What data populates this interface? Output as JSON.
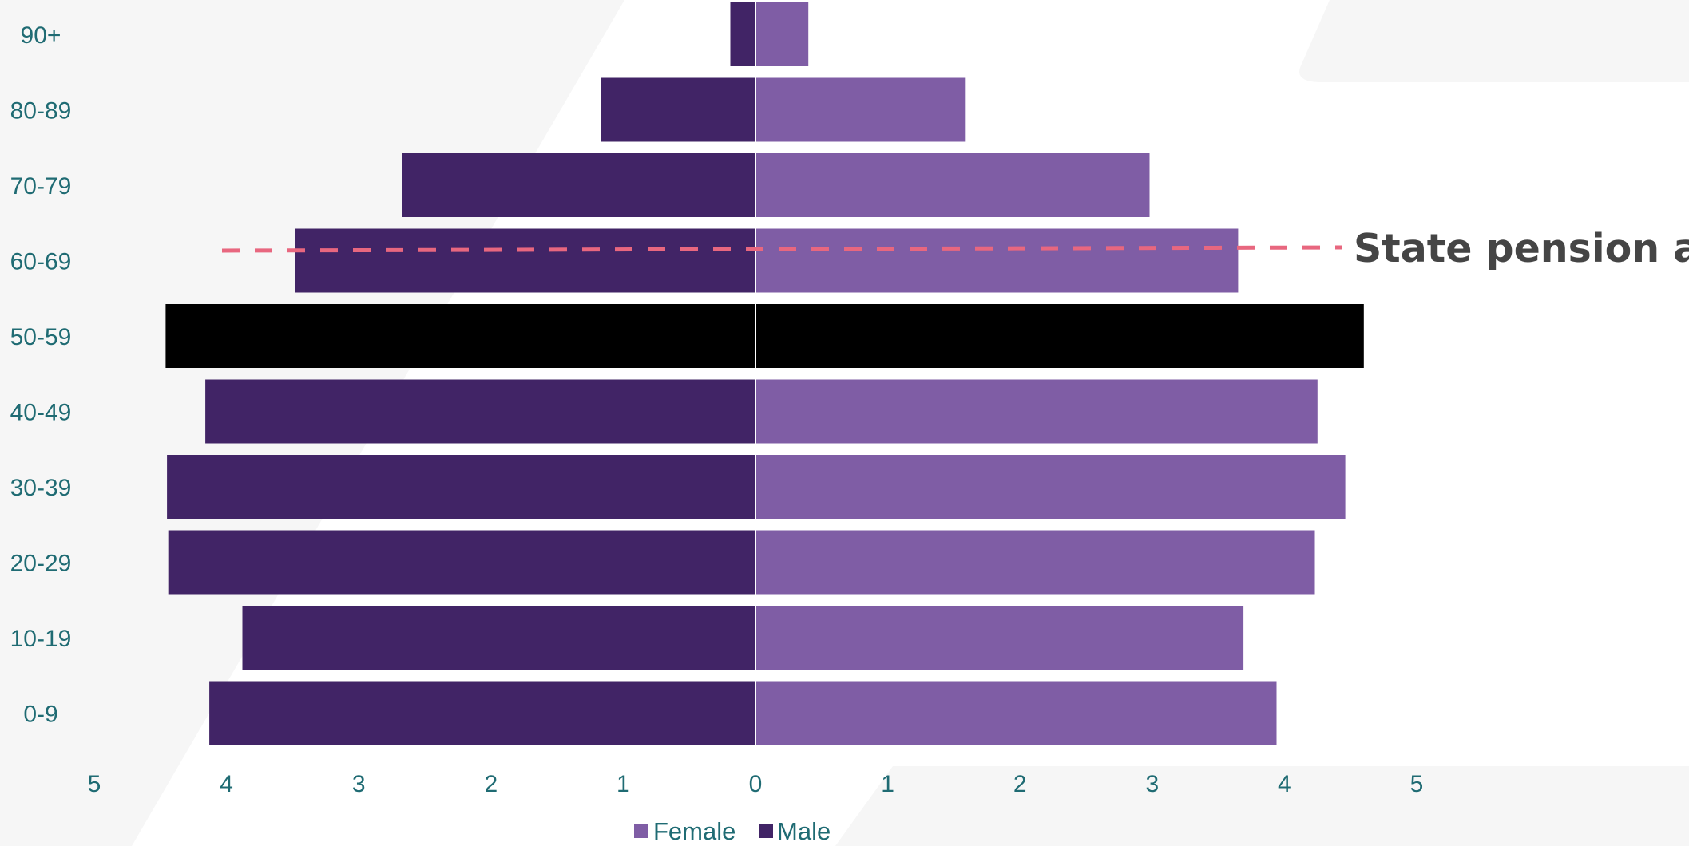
{
  "chart_data": {
    "type": "bar",
    "orientation": "horizontal",
    "layout": "population-pyramid",
    "categories": [
      "0-9",
      "10-19",
      "20-29",
      "30-39",
      "40-49",
      "50-59",
      "60-69",
      "70-79",
      "80-89",
      "90+"
    ],
    "series": [
      {
        "name": "Male",
        "side": "left",
        "color": "#412466",
        "values": [
          4.13,
          3.88,
          4.44,
          4.45,
          4.16,
          4.46,
          3.48,
          2.67,
          1.17,
          0.19
        ]
      },
      {
        "name": "Female",
        "side": "right",
        "color": "#7f5da5",
        "values": [
          3.94,
          3.69,
          4.23,
          4.46,
          4.25,
          4.6,
          3.65,
          2.98,
          1.59,
          0.4
        ]
      }
    ],
    "highlight": {
      "category": "50-59",
      "color": "#000000"
    },
    "x_ticks": {
      "left": [
        "5",
        "4",
        "3",
        "2",
        "1"
      ],
      "center": "0",
      "right": [
        "1",
        "2",
        "3",
        "4",
        "5"
      ]
    },
    "xlim": [
      -5,
      5
    ],
    "xlabel": "",
    "ylabel": "",
    "title": "",
    "legend": {
      "position": "bottom",
      "entries": [
        "Female",
        "Male"
      ]
    },
    "annotation": {
      "text": "State pension age",
      "line_style": "dashed",
      "color": "#e8677f",
      "text_color": "#454545",
      "position_category": "60-69"
    },
    "grid": false
  },
  "colors": {
    "tick_label": "#1f6b73",
    "center_axis": "#ffffff",
    "background_shape": "#f6f6f6"
  }
}
